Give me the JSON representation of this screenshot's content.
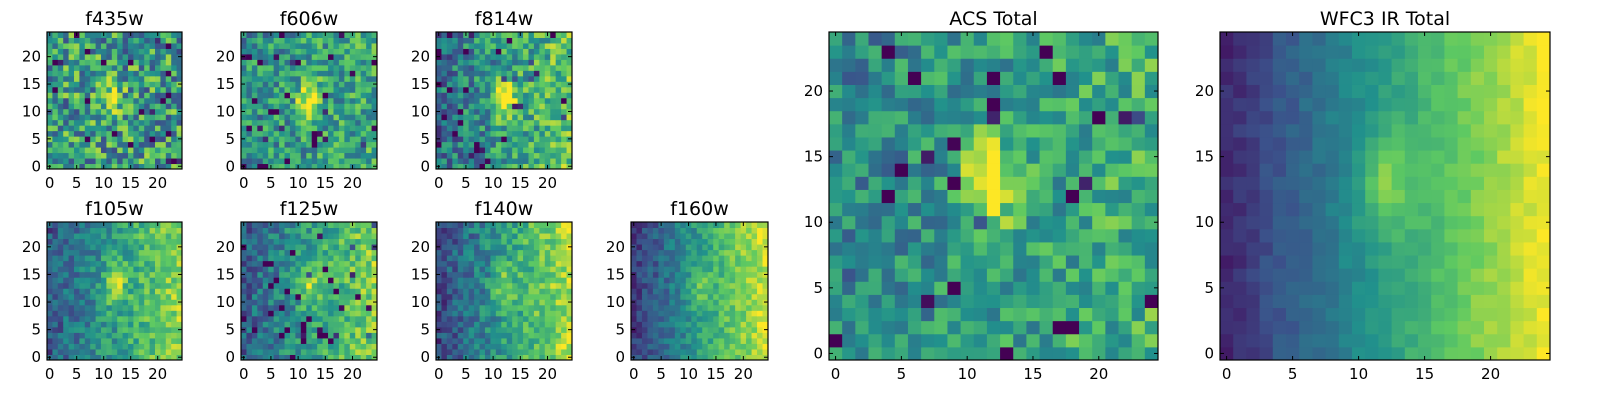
{
  "chart_data": [
    {
      "type": "heatmap",
      "title": "f435w",
      "grid": "25x25 pixel cutout",
      "colormap": "viridis",
      "xticks": [
        0,
        5,
        10,
        15,
        20
      ],
      "yticks": [
        0,
        5,
        10,
        15,
        20
      ],
      "xlim": [
        0,
        25
      ],
      "ylim": [
        0,
        25
      ],
      "source": {
        "bright_x": 11.5,
        "bright_y": 13,
        "strength": 0.3,
        "gradient": 0.0,
        "noise": 0.4
      }
    },
    {
      "type": "heatmap",
      "title": "f606w",
      "grid": "25x25 pixel cutout",
      "colormap": "viridis",
      "xticks": [
        0,
        5,
        10,
        15,
        20
      ],
      "yticks": [
        0,
        5,
        10,
        15,
        20
      ],
      "xlim": [
        0,
        25
      ],
      "ylim": [
        0,
        25
      ],
      "source": {
        "bright_x": 12,
        "bright_y": 12,
        "strength": 0.55,
        "gradient": 0.1,
        "noise": 0.3
      }
    },
    {
      "type": "heatmap",
      "title": "f814w",
      "grid": "25x25 pixel cutout",
      "colormap": "viridis",
      "xticks": [
        0,
        5,
        10,
        15,
        20
      ],
      "yticks": [
        0,
        5,
        10,
        15,
        20
      ],
      "xlim": [
        0,
        25
      ],
      "ylim": [
        0,
        25
      ],
      "source": {
        "bright_x": 12,
        "bright_y": 12.5,
        "strength": 0.55,
        "gradient": 0.35,
        "noise": 0.3
      }
    },
    {
      "type": "heatmap",
      "title": "f105w",
      "grid": "25x25 pixel cutout",
      "colormap": "viridis",
      "xticks": [
        0,
        5,
        10,
        15,
        20
      ],
      "yticks": [
        0,
        5,
        10,
        15,
        20
      ],
      "xlim": [
        0,
        25
      ],
      "ylim": [
        0,
        25
      ],
      "source": {
        "bright_x": 12,
        "bright_y": 13,
        "strength": 0.35,
        "gradient": 0.55,
        "noise": 0.2
      }
    },
    {
      "type": "heatmap",
      "title": "f125w",
      "grid": "25x25 pixel cutout",
      "colormap": "viridis",
      "xticks": [
        0,
        5,
        10,
        15,
        20
      ],
      "yticks": [
        0,
        5,
        10,
        15,
        20
      ],
      "xlim": [
        0,
        25
      ],
      "ylim": [
        0,
        25
      ],
      "source": {
        "bright_x": 12,
        "bright_y": 13,
        "strength": 0.3,
        "gradient": 0.5,
        "noise": 0.22
      }
    },
    {
      "type": "heatmap",
      "title": "f140w",
      "grid": "25x25 pixel cutout",
      "colormap": "viridis",
      "xticks": [
        0,
        5,
        10,
        15,
        20
      ],
      "yticks": [
        0,
        5,
        10,
        15,
        20
      ],
      "xlim": [
        0,
        25
      ],
      "ylim": [
        0,
        25
      ],
      "source": {
        "bright_x": 12,
        "bright_y": 13,
        "strength": 0.25,
        "gradient": 0.65,
        "noise": 0.2
      }
    },
    {
      "type": "heatmap",
      "title": "f160w",
      "grid": "25x25 pixel cutout",
      "colormap": "viridis",
      "xticks": [
        0,
        5,
        10,
        15,
        20
      ],
      "yticks": [
        0,
        5,
        10,
        15,
        20
      ],
      "xlim": [
        0,
        25
      ],
      "ylim": [
        0,
        25
      ],
      "source": {
        "bright_x": 12,
        "bright_y": 13,
        "strength": 0.2,
        "gradient": 0.75,
        "noise": 0.15
      }
    },
    {
      "type": "heatmap",
      "title": "ACS Total",
      "grid": "25x25 pixel cutout",
      "colormap": "viridis",
      "xticks": [
        0,
        5,
        10,
        15,
        20
      ],
      "yticks": [
        0,
        5,
        10,
        15,
        20
      ],
      "xlim": [
        0,
        25
      ],
      "ylim": [
        0,
        25
      ],
      "source": {
        "bright_x": 11.5,
        "bright_y": 13,
        "strength": 0.5,
        "gradient": 0.2,
        "noise": 0.25
      }
    },
    {
      "type": "heatmap",
      "title": "WFC3 IR Total",
      "grid": "25x25 pixel cutout",
      "colormap": "viridis",
      "xticks": [
        0,
        5,
        10,
        15,
        20
      ],
      "yticks": [
        0,
        5,
        10,
        15,
        20
      ],
      "xlim": [
        0,
        25
      ],
      "ylim": [
        0,
        25
      ],
      "source": {
        "bright_x": 12,
        "bright_y": 13,
        "strength": 0.25,
        "gradient": 0.85,
        "noise": 0.06
      }
    }
  ],
  "colors": {
    "viridis": [
      "#440154",
      "#3b528b",
      "#21918c",
      "#5ec962",
      "#fde725"
    ],
    "axis": "#000000",
    "background": "#ffffff"
  }
}
